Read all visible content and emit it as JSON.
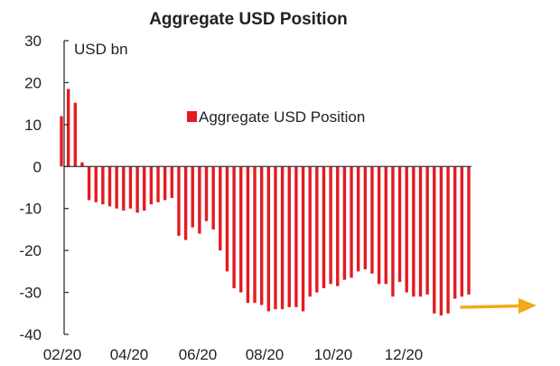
{
  "chart_data": {
    "type": "bar",
    "title": "Aggregate USD Position",
    "ylabel": "USD bn",
    "xlabel": "",
    "ylim": [
      -40,
      30
    ],
    "yticks": [
      30,
      20,
      10,
      0,
      -10,
      -20,
      -30,
      -40
    ],
    "xtick_labels": [
      "02/20",
      "04/20",
      "06/20",
      "08/20",
      "10/20",
      "12/20"
    ],
    "grid": false,
    "legend_position": "center-right",
    "series": [
      {
        "name": "Aggregate USD Position",
        "color": "#E31B23",
        "values": [
          12,
          18.5,
          15.2,
          1,
          -8,
          -8.5,
          -9,
          -9.5,
          -10,
          -10.5,
          -10,
          -11,
          -10.5,
          -9,
          -8.5,
          -8,
          -7.5,
          -16.5,
          -17.5,
          -14.5,
          -16,
          -13,
          -15,
          -20,
          -25,
          -29,
          -30,
          -32.5,
          -32.5,
          -33,
          -34.5,
          -34,
          -34,
          -33.5,
          -33.5,
          -34.5,
          -31,
          -30,
          -29,
          -28,
          -28.5,
          -27,
          -26.5,
          -25,
          -24.5,
          -25.5,
          -28,
          -28,
          -31,
          -27.5,
          -30,
          -31,
          -31,
          -30.5,
          -35,
          -35.5,
          -35,
          -31.5,
          -31,
          -30.5
        ]
      }
    ],
    "annotation": {
      "type": "arrow",
      "color": "#F2A91A",
      "direction": "right"
    }
  }
}
